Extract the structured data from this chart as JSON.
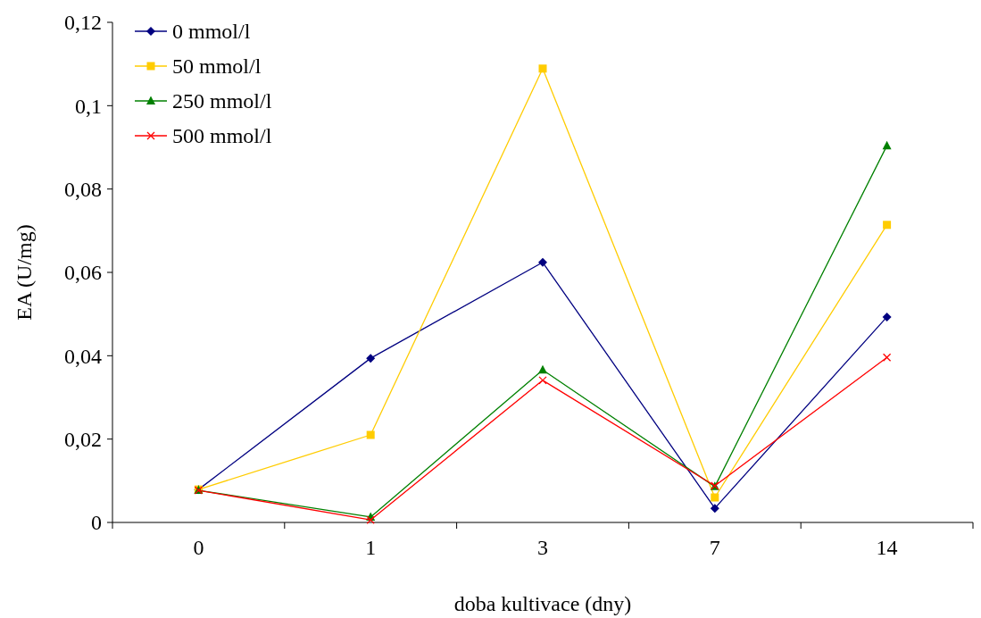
{
  "chart_data": {
    "type": "line",
    "xlabel": "doba kultivace (dny)",
    "ylabel": "EA (U/mg)",
    "categories": [
      "0",
      "1",
      "3",
      "7",
      "14"
    ],
    "ylim": [
      0,
      0.12
    ],
    "yticks": [
      0,
      {
        "value": 0.02,
        "label": "0,02"
      },
      {
        "value": 0.04,
        "label": "0,04"
      },
      {
        "value": 0.06,
        "label": "0,06"
      },
      {
        "value": 0.08,
        "label": "0,08"
      },
      {
        "value": 0.1,
        "label": "0,1"
      },
      {
        "value": 0.12,
        "label": "0,12"
      }
    ],
    "grid": false,
    "legend": "top left",
    "series": [
      {
        "name": "0 mmol/l",
        "color": "#000080",
        "marker": "diamond",
        "values": [
          0.0079,
          0.0394,
          0.0624,
          0.0034,
          0.0493
        ]
      },
      {
        "name": "50 mmol/l",
        "color": "#ffcc00",
        "marker": "square",
        "values": [
          0.0079,
          0.021,
          0.1089,
          0.006,
          0.0714
        ]
      },
      {
        "name": "250 mmol/l",
        "color": "#008000",
        "marker": "triangle",
        "values": [
          0.0077,
          0.0013,
          0.0366,
          0.0086,
          0.0904
        ]
      },
      {
        "name": "500 mmol/l",
        "color": "#ff0000",
        "marker": "cross",
        "values": [
          0.0077,
          0.0006,
          0.0341,
          0.0088,
          0.0396
        ]
      }
    ]
  }
}
